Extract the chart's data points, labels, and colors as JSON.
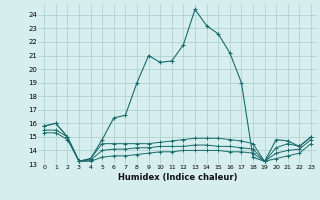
{
  "xlabel": "Humidex (Indice chaleur)",
  "xlim": [
    -0.5,
    23.5
  ],
  "ylim": [
    13,
    24.8
  ],
  "yticks": [
    13,
    14,
    15,
    16,
    17,
    18,
    19,
    20,
    21,
    22,
    23,
    24
  ],
  "xticks": [
    0,
    1,
    2,
    3,
    4,
    5,
    6,
    7,
    8,
    9,
    10,
    11,
    12,
    13,
    14,
    15,
    16,
    17,
    18,
    19,
    20,
    21,
    22,
    23
  ],
  "background_color": "#d6eeee",
  "grid_color": "#aacccc",
  "line_color": "#1a6b6b",
  "curve_main": [
    15.8,
    16.0,
    15.0,
    13.2,
    13.4,
    14.8,
    16.4,
    16.6,
    19.0,
    21.0,
    20.5,
    20.6,
    21.8,
    24.4,
    23.2,
    22.6,
    21.2,
    19.0,
    13.5,
    13.2,
    14.8,
    14.7,
    14.3,
    15.0
  ],
  "curve2": [
    15.8,
    16.0,
    15.0,
    13.2,
    13.4,
    14.5,
    14.5,
    14.5,
    14.5,
    14.5,
    14.6,
    14.7,
    14.8,
    14.9,
    14.9,
    14.9,
    14.8,
    14.7,
    14.5,
    13.2,
    14.2,
    14.5,
    14.3,
    15.0
  ],
  "curve3": [
    15.5,
    15.5,
    15.0,
    13.2,
    13.3,
    14.0,
    14.1,
    14.1,
    14.2,
    14.2,
    14.3,
    14.3,
    14.3,
    14.4,
    14.4,
    14.3,
    14.3,
    14.2,
    14.1,
    13.2,
    13.8,
    14.0,
    14.1,
    14.8
  ],
  "curve4": [
    15.3,
    15.3,
    14.8,
    13.2,
    13.2,
    13.5,
    13.6,
    13.6,
    13.7,
    13.8,
    13.9,
    13.9,
    14.0,
    14.0,
    14.0,
    14.0,
    13.9,
    13.9,
    13.8,
    13.2,
    13.4,
    13.6,
    13.8,
    14.5
  ]
}
